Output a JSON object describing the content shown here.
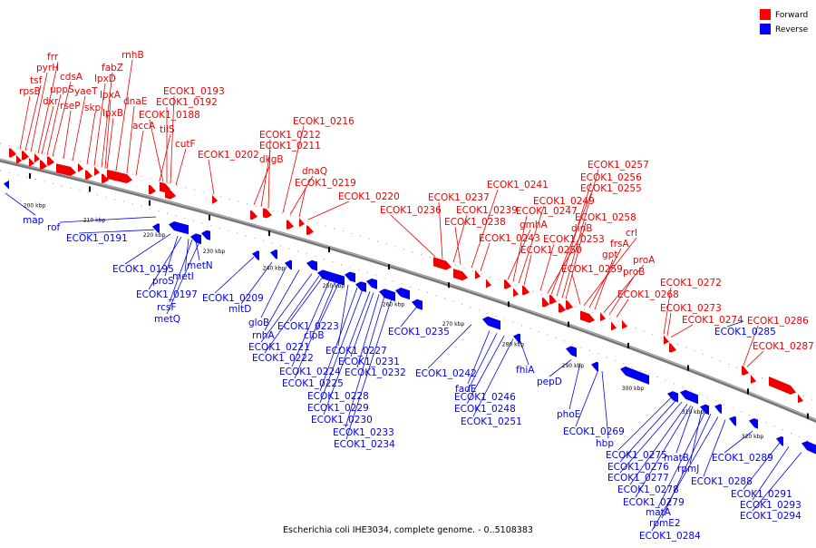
{
  "caption": "Escherichia coli IHE3034, complete genome. - 0..5108383",
  "legend": [
    {
      "label": "Forward",
      "color": "#ff0000"
    },
    {
      "label": "Reverse",
      "color": "#0000ff"
    }
  ],
  "colors": {
    "forward": "#ee0000",
    "reverse": "#0000ee",
    "backbone": "#888888"
  },
  "ticks": [
    "200 kbp",
    "210 kbp",
    "220 kbp",
    "230 kbp",
    "240 kbp",
    "250 kbp",
    "260 kbp",
    "270 kbp",
    "280 kbp",
    "290 kbp",
    "300 kbp",
    "310 kbp",
    "320 kbp"
  ],
  "forward_labels": [
    "rpsB",
    "tsf",
    "pyrH",
    "frr",
    "dxr",
    "uppS",
    "cdsA",
    "rseP",
    "yaeT",
    "skp",
    "lpxD",
    "fabZ",
    "lpxA",
    "lpxB",
    "rnhB",
    "dnaE",
    "accA",
    "tilS",
    "ECOK1_0188",
    "ECOK1_0192",
    "ECOK1_0193",
    "cutF",
    "ECOK1_0202",
    "dkgB",
    "ECOK1_0211",
    "ECOK1_0212",
    "ECOK1_0216",
    "dnaQ",
    "ECOK1_0219",
    "ECOK1_0220",
    "ECOK1_0236",
    "ECOK1_0237",
    "ECOK1_0239",
    "ECOK1_0238",
    "ECOK1_0241",
    "ECOK1_0243",
    "gmhA",
    "ECOK1_0247",
    "ECOK1_0249",
    "ECOK1_0250",
    "ECOK1_0253",
    "dinB",
    "ECOK1_0255",
    "ECOK1_0256",
    "ECOK1_0257",
    "ECOK1_0258",
    "crl",
    "frsA",
    "gpt",
    "ECOK1_0259",
    "proA",
    "proB",
    "ECOK1_0268",
    "ECOK1_0272",
    "ECOK1_0273",
    "ECOK1_0274",
    "ECOK1_0286",
    "ECOK1_0287"
  ],
  "reverse_labels": [
    "map",
    "rof",
    "ECOK1_0191",
    "ECOK1_0195",
    "proS",
    "metI",
    "metN",
    "ECOK1_0197",
    "rcsF",
    "metQ",
    "ECOK1_0209",
    "mltD",
    "gloB",
    "rnhA",
    "ECOK1_0221",
    "ECOK1_0222",
    "ECOK1_0223",
    "ECOK1_0224",
    "ECOK1_0225",
    "clpB",
    "ECOK1_0227",
    "ECOK1_0228",
    "ECOK1_0229",
    "ECOK1_0230",
    "ECOK1_0231",
    "ECOK1_0232",
    "ECOK1_0233",
    "ECOK1_0234",
    "ECOK1_0235",
    "ECOK1_0242",
    "fadE",
    "ECOK1_0246",
    "ECOK1_0248",
    "ECOK1_0251",
    "fhiA",
    "pepD",
    "phoE",
    "ECOK1_0269",
    "hbp",
    "ECOK1_0275",
    "ECOK1_0276",
    "ECOK1_0277",
    "ECOK1_0278",
    "ECOK1_0279",
    "matB",
    "rpmJ",
    "matA",
    "rpmE2",
    "ECOK1_0284",
    "ECOK1_0285",
    "ECOK1_0288",
    "ECOK1_0289",
    "ECOK1_0291",
    "ECOK1_0293",
    "ECOK1_0294"
  ]
}
